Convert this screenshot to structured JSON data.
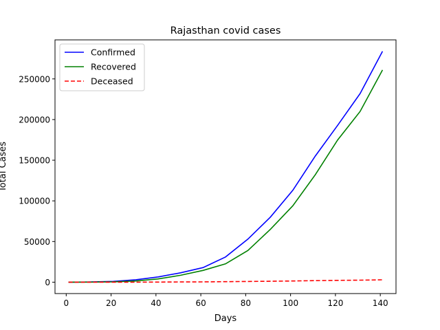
{
  "chart_data": {
    "type": "line",
    "title": "Rajasthan covid cases",
    "xlabel": "Days",
    "ylabel": "Total Cases",
    "xlim": [
      -5,
      147
    ],
    "ylim": [
      -14000,
      298000
    ],
    "xticks": [
      0,
      20,
      40,
      60,
      80,
      100,
      120,
      140
    ],
    "yticks": [
      0,
      50000,
      100000,
      150000,
      200000,
      250000
    ],
    "grid": false,
    "legend": "top-left",
    "x": [
      1,
      11,
      21,
      31,
      41,
      51,
      61,
      71,
      81,
      91,
      101,
      111,
      121,
      131,
      141
    ],
    "series": [
      {
        "name": "Confirmed",
        "color": "#0000ff",
        "dash": "solid",
        "values": [
          0,
          300,
          1000,
          3000,
          6500,
          11500,
          18000,
          31000,
          53000,
          80000,
          113000,
          155000,
          193000,
          232000,
          284000
        ]
      },
      {
        "name": "Recovered",
        "color": "#008000",
        "dash": "solid",
        "values": [
          0,
          100,
          500,
          1500,
          4000,
          8500,
          14500,
          22500,
          39000,
          65000,
          94000,
          132000,
          175000,
          210000,
          261000
        ]
      },
      {
        "name": "Deceased",
        "color": "#ff0000",
        "dash": "dashed",
        "values": [
          0,
          10,
          30,
          70,
          150,
          250,
          400,
          650,
          900,
          1150,
          1500,
          1900,
          2200,
          2500,
          2900
        ]
      }
    ]
  }
}
